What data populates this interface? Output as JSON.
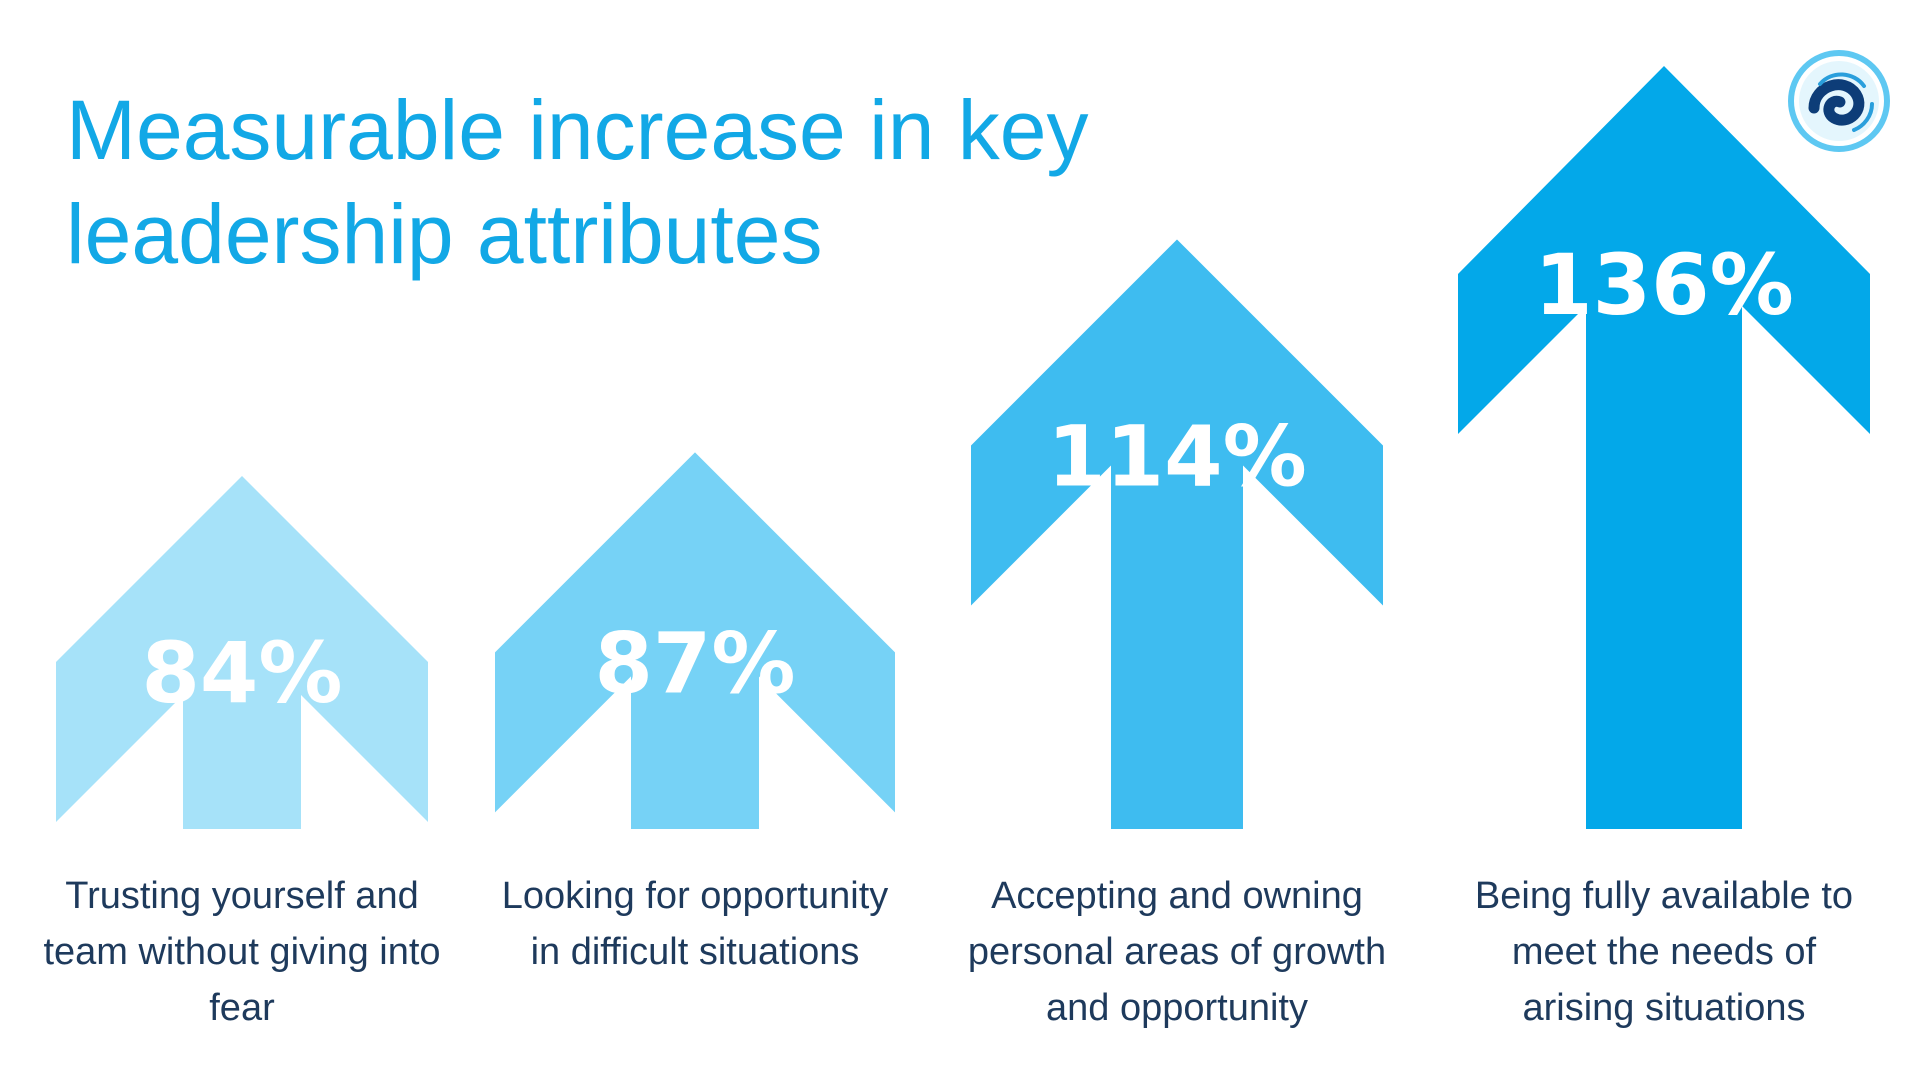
{
  "title": "Measurable increase in key leadership attributes",
  "colors": {
    "title": "#12a8e6",
    "arrows": [
      "#a6e2f9",
      "#76d2f6",
      "#3ebcf0",
      "#03a8e9"
    ],
    "value_text": "#ffffff",
    "caption_text": "#1e3a5c"
  },
  "logo": {
    "icon": "spiral-wave-icon"
  },
  "chart_data": {
    "type": "bar",
    "title": "Measurable increase in key leadership attributes",
    "categories": [
      "Trusting yourself and team without giving into fear",
      "Looking for opportunity in difficult situations",
      "Accepting and owning personal areas of growth and opportunity",
      "Being fully available to meet the needs of arising situations"
    ],
    "values": [
      84,
      87,
      114,
      136
    ],
    "value_labels": [
      "84%",
      "87%",
      "114%",
      "136%"
    ],
    "unit": "%",
    "xlabel": "",
    "ylabel": "",
    "ylim": [
      0,
      136
    ],
    "grid": false,
    "legend": "none"
  }
}
